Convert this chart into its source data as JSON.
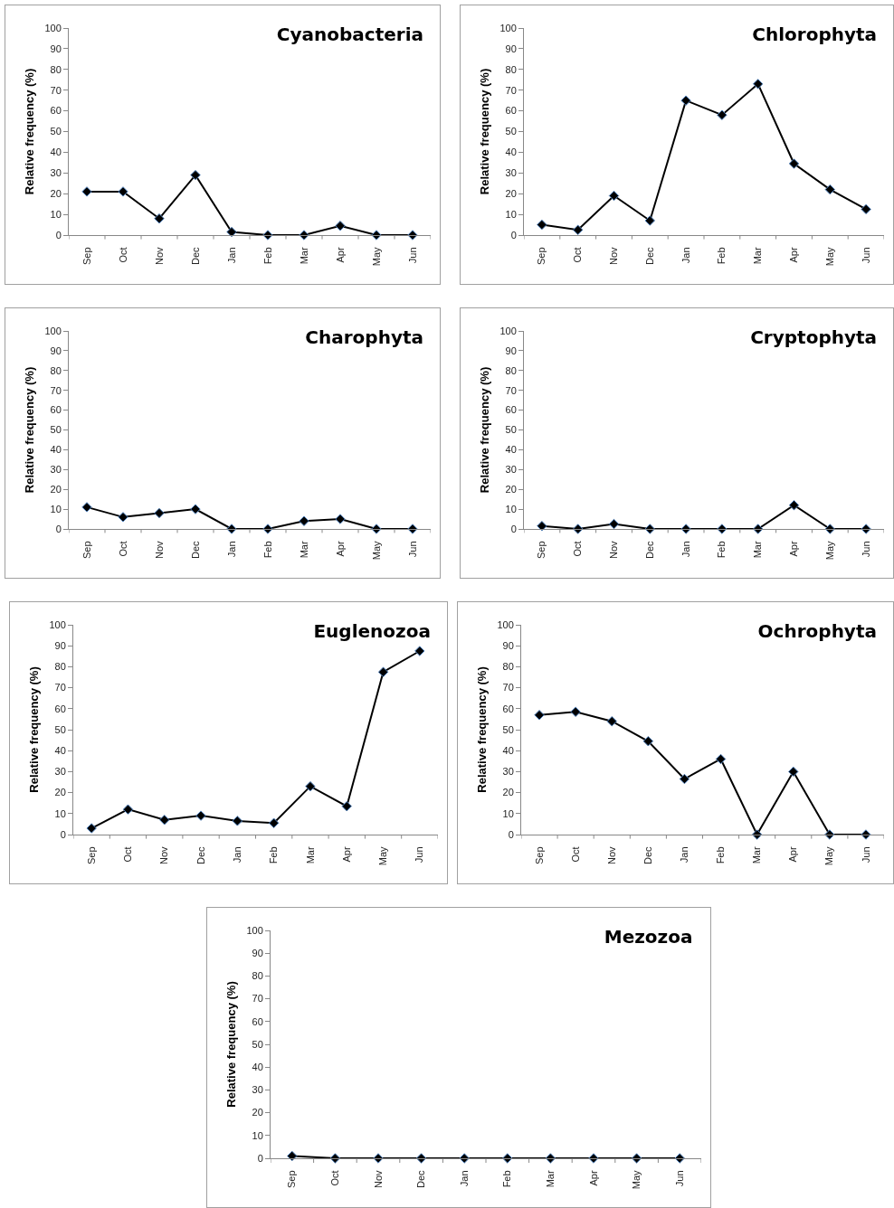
{
  "chart_data": [
    {
      "type": "line",
      "title": "Cyanobacteria",
      "ylabel": "Relative frequency (%)",
      "categories": [
        "Sep",
        "Oct",
        "Nov",
        "Dec",
        "Jan",
        "Feb",
        "Mar",
        "Apr",
        "May",
        "Jun"
      ],
      "values": [
        21,
        21,
        8,
        29,
        1.5,
        0,
        0,
        4.5,
        0,
        0
      ],
      "color": "#000000",
      "marker": "diamond",
      "ylim": [
        0,
        100
      ],
      "yticks": [
        0,
        10,
        20,
        30,
        40,
        50,
        60,
        70,
        80,
        90,
        100
      ]
    },
    {
      "type": "line",
      "title": "Chlorophyta",
      "ylabel": "Relative frequency (%)",
      "categories": [
        "Sep",
        "Oct",
        "Nov",
        "Dec",
        "Jan",
        "Feb",
        "Mar",
        "Apr",
        "May",
        "Jun"
      ],
      "values": [
        5,
        2.5,
        19,
        7,
        65,
        58,
        73,
        34.5,
        22,
        12.5
      ],
      "color": "#000000",
      "marker": "diamond",
      "ylim": [
        0,
        100
      ],
      "yticks": [
        0,
        10,
        20,
        30,
        40,
        50,
        60,
        70,
        80,
        90,
        100
      ]
    },
    {
      "type": "line",
      "title": "Charophyta",
      "ylabel": "Relative frequency (%)",
      "categories": [
        "Sep",
        "Oct",
        "Nov",
        "Dec",
        "Jan",
        "Feb",
        "Mar",
        "Apr",
        "May",
        "Jun"
      ],
      "values": [
        11,
        6,
        8,
        10,
        0,
        0,
        4,
        5,
        0,
        0
      ],
      "color": "#000000",
      "marker": "diamond",
      "ylim": [
        0,
        100
      ],
      "yticks": [
        0,
        10,
        20,
        30,
        40,
        50,
        60,
        70,
        80,
        90,
        100
      ]
    },
    {
      "type": "line",
      "title": "Cryptophyta",
      "ylabel": "Relative frequency (%)",
      "categories": [
        "Sep",
        "Oct",
        "Nov",
        "Dec",
        "Jan",
        "Feb",
        "Mar",
        "Apr",
        "May",
        "Jun"
      ],
      "values": [
        1.5,
        0,
        2.5,
        0,
        0,
        0,
        0,
        12,
        0,
        0
      ],
      "color": "#000000",
      "marker": "diamond",
      "ylim": [
        0,
        100
      ],
      "yticks": [
        0,
        10,
        20,
        30,
        40,
        50,
        60,
        70,
        80,
        90,
        100
      ]
    },
    {
      "type": "line",
      "title": "Euglenozoa",
      "ylabel": "Relative frequency (%)",
      "categories": [
        "Sep",
        "Oct",
        "Nov",
        "Dec",
        "Jan",
        "Feb",
        "Mar",
        "Apr",
        "May",
        "Jun"
      ],
      "values": [
        3,
        12,
        7,
        9,
        6.5,
        5.5,
        23,
        13.5,
        77.5,
        87.5
      ],
      "color": "#000000",
      "marker": "diamond",
      "ylim": [
        0,
        100
      ],
      "yticks": [
        0,
        10,
        20,
        30,
        40,
        50,
        60,
        70,
        80,
        90,
        100
      ]
    },
    {
      "type": "line",
      "title": "Ochrophyta",
      "ylabel": "Relative frequency (%)",
      "categories": [
        "Sep",
        "Oct",
        "Nov",
        "Dec",
        "Jan",
        "Feb",
        "Mar",
        "Apr",
        "May",
        "Jun"
      ],
      "values": [
        57,
        58.5,
        54,
        44.5,
        26.5,
        36,
        0,
        30,
        0,
        0
      ],
      "color": "#000000",
      "marker": "diamond",
      "ylim": [
        0,
        100
      ],
      "yticks": [
        0,
        10,
        20,
        30,
        40,
        50,
        60,
        70,
        80,
        90,
        100
      ]
    },
    {
      "type": "line",
      "title": "Mezozoa",
      "ylabel": "Relative frequency (%)",
      "categories": [
        "Sep",
        "Oct",
        "Nov",
        "Dec",
        "Jan",
        "Feb",
        "Mar",
        "Apr",
        "May",
        "Jun"
      ],
      "values": [
        1,
        0,
        0,
        0,
        0,
        0,
        0,
        0,
        0,
        0
      ],
      "color": "#000000",
      "marker": "diamond",
      "ylim": [
        0,
        100
      ],
      "yticks": [
        0,
        10,
        20,
        30,
        40,
        50,
        60,
        70,
        80,
        90,
        100
      ]
    }
  ]
}
